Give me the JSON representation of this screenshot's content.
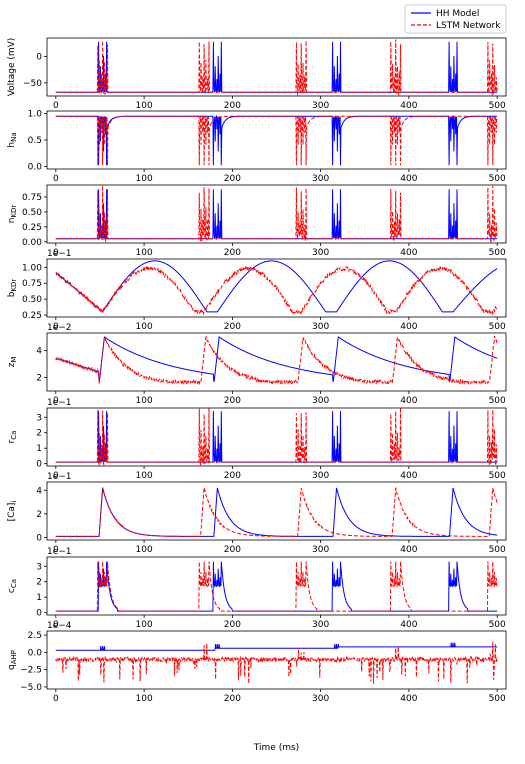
{
  "chart_data": {
    "type": "line",
    "xlabel": "Time (ms)",
    "xlim": [
      -10,
      510
    ],
    "x_ticks": [
      0,
      100,
      200,
      300,
      400,
      500
    ],
    "legend": {
      "placement": "top-right",
      "entries": [
        {
          "name": "HH Model",
          "color": "#0000ff",
          "dash": "solid"
        },
        {
          "name": "LSTM Network",
          "color": "#ff0000",
          "dash": "dashed"
        }
      ]
    },
    "burst_centers": {
      "hh": [
        53,
        183,
        318,
        450
      ],
      "lstm": [
        53,
        168,
        278,
        385,
        495
      ]
    },
    "panels": [
      {
        "id": "voltage",
        "ylabel": "Voltage (mV)",
        "ylim": [
          -75,
          35
        ],
        "yticks": [
          0,
          -50
        ],
        "ytick_labels": [
          "0",
          "−50"
        ],
        "exponent": "",
        "rest": -68,
        "peak": 28,
        "kind": "spikes"
      },
      {
        "id": "hna",
        "ylabel": "h_Na",
        "ylim": [
          -0.05,
          1.05
        ],
        "yticks": [
          0.0,
          0.5,
          1.0
        ],
        "ytick_labels": [
          "0.0",
          "0.5",
          "1.0"
        ],
        "exponent": "",
        "rest": 0.95,
        "peak": 0.02,
        "kind": "dips"
      },
      {
        "id": "nkdr",
        "ylabel": "n_KDr",
        "ylim": [
          -0.02,
          0.95
        ],
        "yticks": [
          0.0,
          0.25,
          0.5,
          0.75
        ],
        "ytick_labels": [
          "0.00",
          "0.25",
          "0.50",
          "0.75"
        ],
        "exponent": "",
        "rest": 0.05,
        "peak": 0.88,
        "kind": "spikes"
      },
      {
        "id": "bkdr",
        "ylabel": "b_KDr",
        "ylim": [
          0.22,
          1.13
        ],
        "yticks": [
          0.25,
          0.5,
          0.75,
          1.0
        ],
        "ytick_labels": [
          "0.25",
          "0.50",
          "0.75",
          "1.00"
        ],
        "exponent": "1e−1",
        "kind": "slow"
      },
      {
        "id": "zm",
        "ylabel": "z_M",
        "ylim": [
          1.0,
          5.3
        ],
        "yticks": [
          2,
          4
        ],
        "ytick_labels": [
          "2",
          "4"
        ],
        "exponent": "1e−2",
        "kind": "sawtooth",
        "low": 1.5,
        "high": 5.0
      },
      {
        "id": "rca",
        "ylabel": "r_Ca",
        "ylim": [
          -0.15,
          3.6
        ],
        "yticks": [
          0,
          1,
          2,
          3
        ],
        "ytick_labels": [
          "0",
          "1",
          "2",
          "3"
        ],
        "exponent": "1e−1",
        "rest": 0.1,
        "peak": 3.4,
        "kind": "spikes"
      },
      {
        "id": "cai",
        "ylabel": "[Ca]_i",
        "ylim": [
          -0.2,
          4.7
        ],
        "yticks": [
          0,
          2,
          4
        ],
        "ytick_labels": [
          "0",
          "2",
          "4"
        ],
        "exponent": "1e−1",
        "kind": "decay",
        "low": 0.1,
        "high": 4.2
      },
      {
        "id": "cca",
        "ylabel": "c_Ca",
        "ylim": [
          -0.15,
          3.6
        ],
        "yticks": [
          0,
          1,
          2,
          3
        ],
        "ytick_labels": [
          "0",
          "1",
          "2",
          "3"
        ],
        "exponent": "1e−1",
        "rest": 0.1,
        "peak": 3.3,
        "kind": "bumps"
      },
      {
        "id": "qahp",
        "ylabel": "q_AHP",
        "ylim": [
          -5.3,
          3.1
        ],
        "yticks": [
          -5.0,
          -2.5,
          0.0,
          2.5
        ],
        "ytick_labels": [
          "−5.0",
          "−2.5",
          "0.0",
          "2.5"
        ],
        "exponent": "1e−4",
        "kind": "noisy"
      }
    ]
  }
}
